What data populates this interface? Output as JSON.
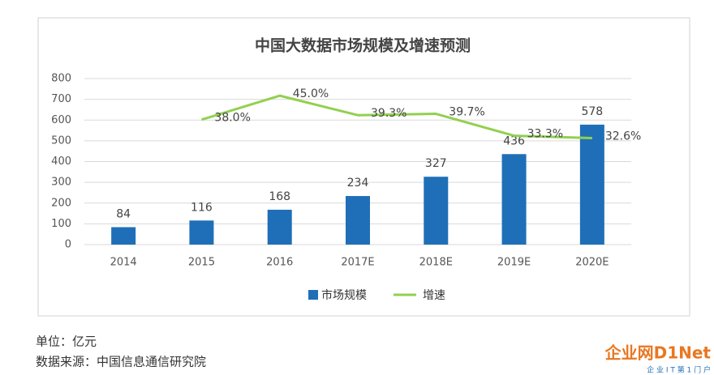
{
  "chart_data": {
    "type": "bar_line",
    "title": "中国大数据市场规模及增速预测",
    "categories": [
      "2014",
      "2015",
      "2016",
      "2017E",
      "2018E",
      "2019E",
      "2020E"
    ],
    "series": [
      {
        "name": "市场规模",
        "type": "bar",
        "color": "#1f6fb8",
        "values": [
          84,
          116,
          168,
          234,
          327,
          436,
          578
        ]
      },
      {
        "name": "增速",
        "type": "line",
        "color": "#92d050",
        "axis": "y2",
        "values": [
          null,
          38.0,
          45.0,
          39.3,
          39.7,
          33.3,
          32.6
        ],
        "value_labels": [
          null,
          "38.0%",
          "45.0%",
          "39.3%",
          "39.7%",
          "33.3%",
          "32.6%"
        ]
      }
    ],
    "ylim": [
      0,
      800
    ],
    "yticks": [
      0,
      100,
      200,
      300,
      400,
      500,
      600,
      700,
      800
    ],
    "y2lim": [
      1.5,
      50
    ],
    "grid": true,
    "legend": "bottom"
  },
  "footer": {
    "unit": "单位：亿元",
    "source": "数据来源：中国信息通信研究院"
  },
  "logo": {
    "name": "企业网D1Net",
    "slogan": "企 业 I T 第 1 门 户"
  }
}
